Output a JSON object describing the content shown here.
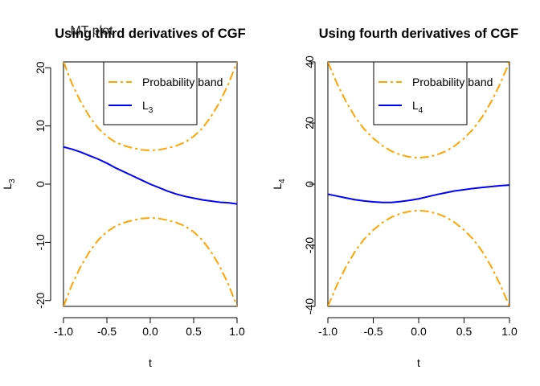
{
  "overlay_text": "MT plot",
  "chart_data": [
    {
      "type": "line",
      "title": "Using third derivatives of CGF",
      "xlabel": "t",
      "ylabel": {
        "base": "L",
        "sub": "3"
      },
      "xlim": [
        -1.0,
        1.0
      ],
      "ylim": [
        -21,
        21
      ],
      "xticks": [
        -1.0,
        -0.5,
        0.0,
        0.5,
        1.0
      ],
      "xtick_labels": [
        "-1.0",
        "-0.5",
        "0.0",
        "0.5",
        "1.0"
      ],
      "yticks": [
        -20,
        -10,
        0,
        10,
        20
      ],
      "ytick_labels": [
        "-20",
        "-10",
        "0",
        "10",
        "20"
      ],
      "grid": false,
      "legend_position": "top-right",
      "legend": [
        {
          "label": "Probability  band",
          "sub": "",
          "color": "#FFA500",
          "dash": "longdash-dot"
        },
        {
          "label": "L",
          "sub": "3",
          "color": "#0000FF",
          "dash": "solid"
        }
      ],
      "series": [
        {
          "role": "band-upper",
          "color": "#FFA500",
          "x": [
            -1.0,
            -0.9,
            -0.8,
            -0.7,
            -0.6,
            -0.5,
            -0.4,
            -0.3,
            -0.2,
            -0.1,
            0.0,
            0.1,
            0.2,
            0.3,
            0.4,
            0.5,
            0.6,
            0.7,
            0.8,
            0.9,
            1.0
          ],
          "y": [
            21.0,
            17.2,
            14.1,
            11.6,
            9.6,
            8.2,
            7.2,
            6.6,
            6.2,
            5.9,
            5.8,
            5.9,
            6.2,
            6.6,
            7.2,
            8.2,
            9.6,
            11.6,
            14.1,
            17.2,
            21.0
          ]
        },
        {
          "role": "band-lower",
          "color": "#FFA500",
          "x": [
            -1.0,
            -0.9,
            -0.8,
            -0.7,
            -0.6,
            -0.5,
            -0.4,
            -0.3,
            -0.2,
            -0.1,
            0.0,
            0.1,
            0.2,
            0.3,
            0.4,
            0.5,
            0.6,
            0.7,
            0.8,
            0.9,
            1.0
          ],
          "y": [
            -21.0,
            -17.2,
            -14.1,
            -11.6,
            -9.6,
            -8.2,
            -7.2,
            -6.6,
            -6.2,
            -5.9,
            -5.8,
            -5.9,
            -6.2,
            -6.6,
            -7.2,
            -8.2,
            -9.6,
            -11.6,
            -14.1,
            -17.2,
            -21.0
          ]
        },
        {
          "role": "statistic",
          "color": "#0000FF",
          "x": [
            -1.0,
            -0.9,
            -0.8,
            -0.7,
            -0.6,
            -0.5,
            -0.4,
            -0.3,
            -0.2,
            -0.1,
            0.0,
            0.1,
            0.2,
            0.3,
            0.4,
            0.5,
            0.6,
            0.7,
            0.8,
            0.9,
            1.0
          ],
          "y": [
            6.4,
            6.0,
            5.5,
            4.9,
            4.3,
            3.6,
            2.8,
            2.1,
            1.4,
            0.7,
            0.0,
            -0.6,
            -1.2,
            -1.7,
            -2.1,
            -2.4,
            -2.7,
            -2.9,
            -3.1,
            -3.2,
            -3.4
          ]
        }
      ]
    },
    {
      "type": "line",
      "title": "Using fourth derivatives of CGF",
      "xlabel": "t",
      "ylabel": {
        "base": "L",
        "sub": "4"
      },
      "xlim": [
        -1.0,
        1.0
      ],
      "ylim": [
        -40,
        40
      ],
      "xticks": [
        -1.0,
        -0.5,
        0.0,
        0.5,
        1.0
      ],
      "xtick_labels": [
        "-1.0",
        "-0.5",
        "0.0",
        "0.5",
        "1.0"
      ],
      "yticks": [
        -40,
        -20,
        0,
        20,
        40
      ],
      "ytick_labels": [
        "-40",
        "-20",
        "0",
        "20",
        "40"
      ],
      "grid": false,
      "legend_position": "top-right",
      "legend": [
        {
          "label": "Probability  band",
          "sub": "",
          "color": "#FFA500",
          "dash": "longdash-dot"
        },
        {
          "label": "L",
          "sub": "4",
          "color": "#0000FF",
          "dash": "solid"
        }
      ],
      "series": [
        {
          "role": "band-upper",
          "color": "#FFA500",
          "x": [
            -1.0,
            -0.9,
            -0.8,
            -0.7,
            -0.6,
            -0.5,
            -0.4,
            -0.3,
            -0.2,
            -0.1,
            0.0,
            0.1,
            0.2,
            0.3,
            0.4,
            0.5,
            0.6,
            0.7,
            0.8,
            0.9,
            1.0
          ],
          "y": [
            40.0,
            33.0,
            27.0,
            22.0,
            18.0,
            15.0,
            12.6,
            10.8,
            9.6,
            8.9,
            8.6,
            8.9,
            9.6,
            10.8,
            12.6,
            15.0,
            18.0,
            22.0,
            27.0,
            33.0,
            40.0
          ]
        },
        {
          "role": "band-lower",
          "color": "#FFA500",
          "x": [
            -1.0,
            -0.9,
            -0.8,
            -0.7,
            -0.6,
            -0.5,
            -0.4,
            -0.3,
            -0.2,
            -0.1,
            0.0,
            0.1,
            0.2,
            0.3,
            0.4,
            0.5,
            0.6,
            0.7,
            0.8,
            0.9,
            1.0
          ],
          "y": [
            -40.0,
            -33.0,
            -27.0,
            -22.0,
            -18.0,
            -15.0,
            -12.6,
            -10.8,
            -9.6,
            -8.9,
            -8.6,
            -8.9,
            -9.6,
            -10.8,
            -12.6,
            -15.0,
            -18.0,
            -22.0,
            -27.0,
            -33.0,
            -40.0
          ]
        },
        {
          "role": "statistic",
          "color": "#0000FF",
          "x": [
            -1.0,
            -0.9,
            -0.8,
            -0.7,
            -0.6,
            -0.5,
            -0.4,
            -0.3,
            -0.2,
            -0.1,
            0.0,
            0.1,
            0.2,
            0.3,
            0.4,
            0.5,
            0.6,
            0.7,
            0.8,
            0.9,
            1.0
          ],
          "y": [
            -3.3,
            -3.9,
            -4.5,
            -5.1,
            -5.5,
            -5.8,
            -6.0,
            -6.0,
            -5.7,
            -5.3,
            -4.8,
            -4.1,
            -3.4,
            -2.8,
            -2.2,
            -1.8,
            -1.4,
            -1.1,
            -0.8,
            -0.5,
            -0.3
          ]
        }
      ]
    }
  ]
}
